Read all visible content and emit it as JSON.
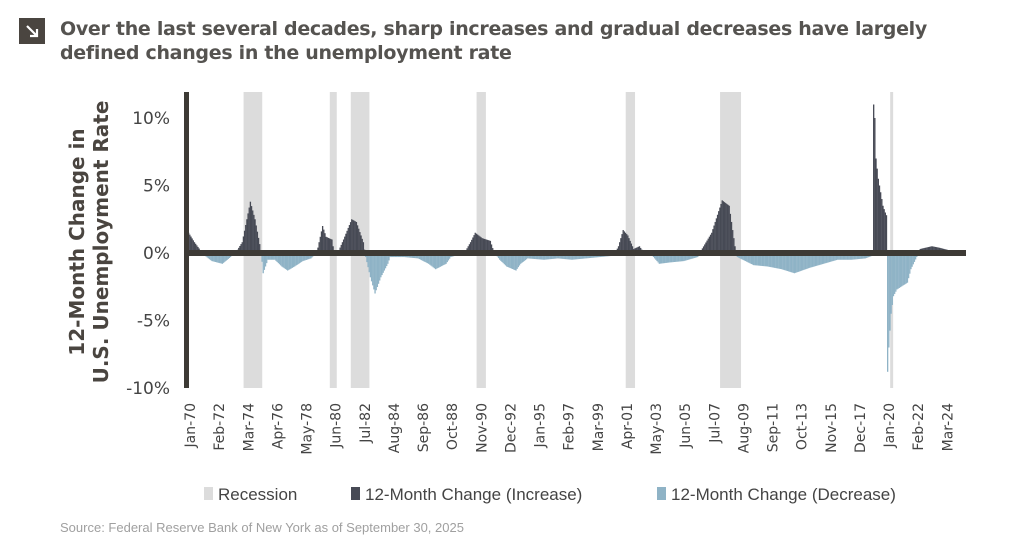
{
  "title": "Over the last several decades, sharp increases and gradual decreases have largely defined changes in the unemployment rate",
  "source": "Source: Federal Reserve Bank of New York as of September 30, 2025",
  "colors": {
    "increase": "#474a55",
    "decrease": "#8fb3c6",
    "recession": "#dcdcdc",
    "axis": "#3d3a35",
    "icon": "#4a4540"
  },
  "chart_data": {
    "type": "bar",
    "ylabel": [
      "12-Month Change in",
      "U.S. Unemployment Rate"
    ],
    "ylim": [
      -10,
      12
    ],
    "yticks": [
      10,
      5,
      0,
      -5,
      -10
    ],
    "ytick_labels": [
      "10%",
      "5%",
      "0%",
      "-5%",
      "-10%"
    ],
    "xtick_labels": [
      "Jan-70",
      "Feb-72",
      "Mar-74",
      "Apr-76",
      "May-78",
      "Jun-80",
      "Jul-82",
      "Aug-84",
      "Sep-86",
      "Oct-88",
      "Nov-90",
      "Dec-92",
      "Jan-95",
      "Feb-97",
      "Mar-99",
      "Apr-01",
      "May-03",
      "Jun-05",
      "Jul-07",
      "Aug-09",
      "Sep-11",
      "Oct-13",
      "Nov-15",
      "Dec-17",
      "Jan-20",
      "Feb-22",
      "Mar-24"
    ],
    "legend": [
      "Recession",
      "12-Month Change (Increase)",
      "12-Month Change (Decrease)"
    ],
    "legend_position": "bottom",
    "grid": false,
    "recessions": [
      [
        "1973-11",
        "1975-03"
      ],
      [
        "1980-01",
        "1980-07"
      ],
      [
        "1981-07",
        "1982-11"
      ],
      [
        "1990-07",
        "1991-03"
      ],
      [
        "2001-03",
        "2001-11"
      ],
      [
        "2007-12",
        "2009-06"
      ],
      [
        "2020-02",
        "2020-04"
      ]
    ],
    "series_points": [
      [
        "1970-01",
        1.5
      ],
      [
        "1970-06",
        0.8
      ],
      [
        "1970-12",
        0.1
      ],
      [
        "1971-03",
        -0.2
      ],
      [
        "1971-09",
        -0.6
      ],
      [
        "1972-06",
        -0.8
      ],
      [
        "1973-01",
        -0.3
      ],
      [
        "1973-06",
        0.1
      ],
      [
        "1973-11",
        0.8
      ],
      [
        "1974-03",
        2.5
      ],
      [
        "1974-06",
        3.8
      ],
      [
        "1974-10",
        2.5
      ],
      [
        "1975-03",
        0.2
      ],
      [
        "1975-05",
        -1.5
      ],
      [
        "1975-09",
        -0.5
      ],
      [
        "1976-03",
        -0.5
      ],
      [
        "1976-09",
        -1.0
      ],
      [
        "1977-02",
        -1.3
      ],
      [
        "1977-08",
        -1.0
      ],
      [
        "1978-03",
        -0.6
      ],
      [
        "1978-10",
        -0.4
      ],
      [
        "1979-03",
        0.0
      ],
      [
        "1979-06",
        1.2
      ],
      [
        "1979-08",
        2.0
      ],
      [
        "1979-11",
        1.2
      ],
      [
        "1980-04",
        1.0
      ],
      [
        "1980-06",
        0.0
      ],
      [
        "1980-10",
        0.2
      ],
      [
        "1981-02",
        1.0
      ],
      [
        "1981-09",
        2.5
      ],
      [
        "1982-01",
        2.3
      ],
      [
        "1982-07",
        0.8
      ],
      [
        "1982-09",
        -0.3
      ],
      [
        "1983-01",
        -1.8
      ],
      [
        "1983-05",
        -3.0
      ],
      [
        "1983-10",
        -1.8
      ],
      [
        "1984-04",
        -0.8
      ],
      [
        "1984-06",
        -0.3
      ],
      [
        "1985-06",
        -0.3
      ],
      [
        "1986-06",
        -0.4
      ],
      [
        "1987-03",
        -0.8
      ],
      [
        "1987-09",
        -1.2
      ],
      [
        "1988-06",
        -0.8
      ],
      [
        "1988-10",
        -0.3
      ],
      [
        "1989-06",
        -0.1
      ],
      [
        "1989-11",
        0.2
      ],
      [
        "1990-03",
        0.8
      ],
      [
        "1990-07",
        1.5
      ],
      [
        "1991-01",
        1.1
      ],
      [
        "1991-08",
        0.9
      ],
      [
        "1991-11",
        0.1
      ],
      [
        "1992-04",
        -0.5
      ],
      [
        "1992-10",
        -1.0
      ],
      [
        "1993-06",
        -1.3
      ],
      [
        "1993-10",
        -0.8
      ],
      [
        "1994-04",
        -0.4
      ],
      [
        "1995-06",
        -0.5
      ],
      [
        "1996-06",
        -0.4
      ],
      [
        "1997-06",
        -0.5
      ],
      [
        "1998-06",
        -0.4
      ],
      [
        "1999-06",
        -0.3
      ],
      [
        "2000-06",
        -0.2
      ],
      [
        "2000-10",
        0.5
      ],
      [
        "2001-02",
        1.7
      ],
      [
        "2001-06",
        1.3
      ],
      [
        "2001-11",
        0.3
      ],
      [
        "2002-04",
        0.5
      ],
      [
        "2002-08",
        0.0
      ],
      [
        "2003-03",
        -0.2
      ],
      [
        "2003-09",
        -0.8
      ],
      [
        "2004-06",
        -0.7
      ],
      [
        "2005-06",
        -0.6
      ],
      [
        "2006-06",
        -0.3
      ],
      [
        "2006-09",
        0.2
      ],
      [
        "2007-06",
        1.5
      ],
      [
        "2008-03",
        3.9
      ],
      [
        "2008-09",
        3.5
      ],
      [
        "2009-02",
        0.5
      ],
      [
        "2009-04",
        -0.3
      ],
      [
        "2010-06",
        -0.9
      ],
      [
        "2011-06",
        -1.0
      ],
      [
        "2012-06",
        -1.2
      ],
      [
        "2013-05",
        -1.5
      ],
      [
        "2014-06",
        -1.1
      ],
      [
        "2015-06",
        -0.8
      ],
      [
        "2016-06",
        -0.5
      ],
      [
        "2017-06",
        -0.5
      ],
      [
        "2018-06",
        -0.4
      ],
      [
        "2018-12",
        -0.2
      ],
      [
        "2019-01",
        11.0
      ],
      [
        "2019-02",
        10.0
      ],
      [
        "2019-03",
        7.0
      ],
      [
        "2019-05",
        5.5
      ],
      [
        "2019-07",
        4.5
      ],
      [
        "2019-09",
        3.5
      ],
      [
        "2019-11",
        3.0
      ],
      [
        "2019-12",
        2.8
      ],
      [
        "2020-01",
        -8.8
      ],
      [
        "2020-02",
        -7.0
      ],
      [
        "2020-04",
        -4.5
      ],
      [
        "2020-06",
        -3.2
      ],
      [
        "2020-09",
        -2.7
      ],
      [
        "2021-06",
        -2.2
      ],
      [
        "2021-09",
        -1.2
      ],
      [
        "2022-02",
        -0.3
      ],
      [
        "2022-05",
        0.3
      ],
      [
        "2023-03",
        0.5
      ],
      [
        "2023-09",
        0.4
      ],
      [
        "2024-06",
        0.2
      ],
      [
        "2025-08",
        0.1
      ]
    ]
  }
}
